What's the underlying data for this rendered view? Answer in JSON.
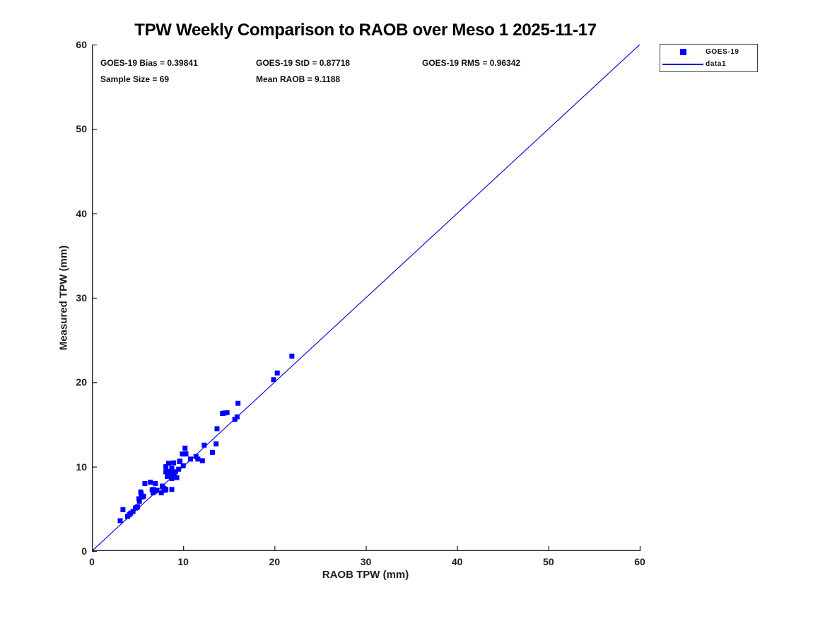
{
  "chart_data": {
    "type": "scatter",
    "title": "TPW Weekly Comparison to RAOB over Meso 1 2025-11-17",
    "xlabel": "RAOB TPW (mm)",
    "ylabel": "Measured TPW (mm)",
    "xlim": [
      0,
      60
    ],
    "ylim": [
      0,
      60
    ],
    "x_ticks": [
      0,
      10,
      20,
      30,
      40,
      50,
      60
    ],
    "y_ticks": [
      0,
      10,
      20,
      30,
      40,
      50,
      60
    ],
    "grid": false,
    "box": false,
    "colors": {
      "marker": "#0000ff",
      "line": "#0f0fd6",
      "axis": "#262626",
      "background": "#ffffff"
    },
    "stats": {
      "bias": "GOES-19 Bias = 0.39841",
      "std": "GOES-19 StD = 0.87718",
      "rms": "GOES-19 RMS = 0.96342",
      "sample_size": "Sample Size = 69",
      "mean_raob": "Mean RAOB = 9.1188"
    },
    "legend": {
      "position": "northeast-outside",
      "entries": [
        {
          "label": "GOES-19",
          "type": "marker"
        },
        {
          "label": "data1",
          "type": "line"
        }
      ]
    },
    "identity_line": {
      "from": [
        0,
        0
      ],
      "to": [
        60,
        60
      ]
    },
    "series": [
      {
        "name": "GOES-19",
        "marker": "filled-square",
        "points": [
          [
            3.1,
            3.6
          ],
          [
            3.4,
            4.9
          ],
          [
            3.9,
            4.1
          ],
          [
            4.1,
            4.3
          ],
          [
            4.25,
            4.5
          ],
          [
            4.5,
            4.7
          ],
          [
            4.76,
            5.1
          ],
          [
            4.9,
            5.15
          ],
          [
            5.0,
            5.25
          ],
          [
            5.15,
            6.2
          ],
          [
            5.2,
            5.9
          ],
          [
            5.35,
            7.0
          ],
          [
            5.4,
            6.8
          ],
          [
            5.5,
            6.4
          ],
          [
            5.66,
            6.5
          ],
          [
            5.8,
            8.0
          ],
          [
            6.4,
            8.15
          ],
          [
            6.6,
            7.25
          ],
          [
            6.7,
            6.9
          ],
          [
            6.75,
            7.3
          ],
          [
            6.9,
            7.1
          ],
          [
            6.95,
            8.0
          ],
          [
            7.1,
            7.2
          ],
          [
            7.6,
            6.9
          ],
          [
            7.7,
            7.7
          ],
          [
            7.75,
            7.6
          ],
          [
            7.9,
            7.4
          ],
          [
            8.0,
            7.2
          ],
          [
            8.1,
            7.3
          ],
          [
            8.1,
            9.4
          ],
          [
            8.1,
            10.0
          ],
          [
            8.25,
            8.85
          ],
          [
            8.3,
            9.45
          ],
          [
            8.4,
            10.4
          ],
          [
            8.5,
            9.0
          ],
          [
            8.6,
            9.4
          ],
          [
            8.75,
            7.3
          ],
          [
            8.75,
            8.6
          ],
          [
            8.75,
            9.8
          ],
          [
            8.9,
            9.2
          ],
          [
            8.95,
            10.45
          ],
          [
            9.0,
            9.1
          ],
          [
            9.15,
            9.4
          ],
          [
            9.3,
            8.7
          ],
          [
            9.5,
            9.7
          ],
          [
            9.6,
            10.6
          ],
          [
            9.65,
            10.65
          ],
          [
            9.9,
            11.5
          ],
          [
            10.0,
            10.1
          ],
          [
            10.2,
            12.2
          ],
          [
            10.25,
            11.55
          ],
          [
            10.3,
            11.5
          ],
          [
            10.8,
            10.9
          ],
          [
            11.4,
            11.2
          ],
          [
            11.6,
            10.9
          ],
          [
            12.1,
            10.7
          ],
          [
            12.3,
            12.55
          ],
          [
            13.2,
            11.7
          ],
          [
            13.6,
            12.7
          ],
          [
            13.7,
            14.5
          ],
          [
            14.3,
            16.3
          ],
          [
            14.5,
            16.35
          ],
          [
            14.8,
            16.4
          ],
          [
            15.65,
            15.6
          ],
          [
            15.9,
            15.9
          ],
          [
            16.0,
            17.5
          ],
          [
            19.9,
            20.3
          ],
          [
            20.3,
            21.1
          ],
          [
            21.9,
            23.1
          ]
        ]
      }
    ]
  }
}
